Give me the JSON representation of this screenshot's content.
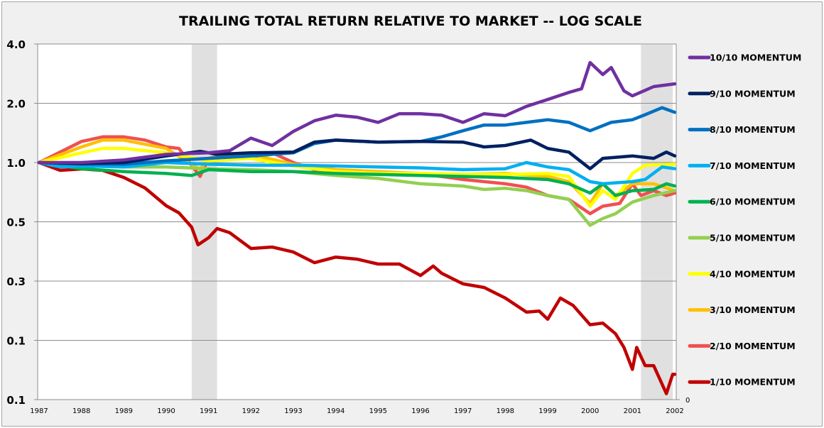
{
  "chart_data": {
    "type": "line",
    "title": "TRAILING TOTAL RETURN RELATIVE TO MARKET -- LOG SCALE",
    "y_scale": "log",
    "ylim": [
      0.0625,
      4
    ],
    "y_ticks": [
      4,
      2,
      1,
      0.5,
      0.25,
      0.125,
      0.0625
    ],
    "y_tick_labels": [
      "4.0",
      "2.0",
      "1.0",
      "0.5",
      "0.3",
      "0.1",
      "0.1"
    ],
    "secondary_y_label": "0",
    "xlim": [
      1987,
      2002
    ],
    "x_tick_labels": [
      "1987",
      "1988",
      "1989",
      "1990",
      "1991",
      "1992",
      "1993",
      "1994",
      "1995",
      "1996",
      "1997",
      "1998",
      "1999",
      "2000",
      "2001",
      "2002"
    ],
    "grid": "horizontal",
    "legend": "right",
    "shaded_periods": [
      [
        1990.6,
        1991.2
      ],
      [
        2001.2,
        2001.95
      ]
    ],
    "shade_color": "#e0e0e0",
    "series": [
      {
        "name": "10/10 MOMENTUM",
        "color": "#7030a0",
        "x": [
          1987,
          1988,
          1989,
          1990,
          1991,
          1991.5,
          1992,
          1992.5,
          1993,
          1993.5,
          1994,
          1994.5,
          1995,
          1995.5,
          1996,
          1996.5,
          1997,
          1997.5,
          1998,
          1998.5,
          1999,
          1999.5,
          1999.8,
          2000,
          2000.3,
          2000.5,
          2000.8,
          2001,
          2001.5,
          2002
        ],
        "y": [
          1.0,
          1.0,
          1.03,
          1.1,
          1.12,
          1.15,
          1.33,
          1.22,
          1.44,
          1.63,
          1.74,
          1.7,
          1.6,
          1.77,
          1.77,
          1.74,
          1.6,
          1.77,
          1.73,
          1.93,
          2.09,
          2.27,
          2.37,
          3.22,
          2.8,
          3.04,
          2.31,
          2.18,
          2.43,
          2.51
        ]
      },
      {
        "name": "9/10 MOMENTUM",
        "color": "#002060",
        "x": [
          1987,
          1988,
          1989,
          1990,
          1990.8,
          1991.2,
          1992,
          1993,
          1993.5,
          1994,
          1995,
          1996,
          1997,
          1997.5,
          1998,
          1998.6,
          1999,
          1999.5,
          2000,
          2000.3,
          2001,
          2001.5,
          2001.8,
          2002
        ],
        "y": [
          1.0,
          0.99,
          1.0,
          1.08,
          1.14,
          1.1,
          1.12,
          1.13,
          1.27,
          1.3,
          1.27,
          1.28,
          1.27,
          1.2,
          1.22,
          1.3,
          1.18,
          1.13,
          0.93,
          1.05,
          1.08,
          1.05,
          1.13,
          1.08
        ]
      },
      {
        "name": "8/10 MOMENTUM",
        "color": "#0070c0",
        "x": [
          1987,
          1988,
          1989,
          1990,
          1991,
          1992,
          1993,
          1993.5,
          1994,
          1995,
          1996,
          1996.5,
          1997,
          1997.5,
          1998,
          1998.5,
          1999,
          1999.5,
          2000,
          2000.5,
          2001,
          2001.3,
          2001.7,
          2002
        ],
        "y": [
          1.0,
          0.98,
          0.98,
          1.02,
          1.05,
          1.08,
          1.12,
          1.25,
          1.3,
          1.27,
          1.28,
          1.35,
          1.45,
          1.55,
          1.55,
          1.6,
          1.65,
          1.6,
          1.45,
          1.6,
          1.65,
          1.75,
          1.9,
          1.8
        ]
      },
      {
        "name": "7/10 MOMENTUM",
        "color": "#00b0f0",
        "x": [
          1987,
          1987.5,
          1988,
          1989,
          1990,
          1991,
          1992,
          1993,
          1994,
          1995,
          1996,
          1997,
          1998,
          1998.5,
          1999,
          1999.5,
          2000,
          2000.3,
          2001,
          2001.3,
          2001.7,
          2002
        ],
        "y": [
          1.0,
          0.95,
          0.96,
          0.95,
          1.0,
          0.98,
          0.97,
          0.97,
          0.96,
          0.95,
          0.94,
          0.92,
          0.93,
          1.0,
          0.95,
          0.92,
          0.8,
          0.78,
          0.8,
          0.82,
          0.95,
          0.93
        ]
      },
      {
        "name": "6/10 MOMENTUM",
        "color": "#00b050",
        "x": [
          1987,
          1988,
          1989,
          1990,
          1990.6,
          1991,
          1992,
          1993,
          1994,
          1995,
          1996,
          1997,
          1998,
          1999,
          1999.5,
          2000,
          2000.3,
          2000.6,
          2001,
          2001.5,
          2001.8,
          2002
        ],
        "y": [
          1.0,
          0.93,
          0.9,
          0.88,
          0.86,
          0.92,
          0.9,
          0.9,
          0.88,
          0.87,
          0.86,
          0.85,
          0.84,
          0.82,
          0.78,
          0.7,
          0.78,
          0.68,
          0.72,
          0.73,
          0.78,
          0.76
        ]
      },
      {
        "name": "5/10 MOMENTUM",
        "color": "#92d050",
        "x": [
          1987,
          1988,
          1989,
          1990,
          1991,
          1992,
          1993,
          1994,
          1995,
          1996,
          1997,
          1997.5,
          1998,
          1998.5,
          1999,
          1999.5,
          2000,
          2000.3,
          2000.6,
          2001,
          2001.5,
          2002
        ],
        "y": [
          1.0,
          0.98,
          0.95,
          0.95,
          0.93,
          0.92,
          0.9,
          0.86,
          0.83,
          0.78,
          0.76,
          0.73,
          0.74,
          0.72,
          0.68,
          0.65,
          0.48,
          0.52,
          0.55,
          0.63,
          0.68,
          0.72
        ]
      },
      {
        "name": "4/10 MOMENTUM",
        "color": "#ffff00",
        "x": [
          1987,
          1988,
          1988.5,
          1989,
          1990,
          1991,
          1992,
          1993,
          1994,
          1995,
          1996,
          1997,
          1998,
          1999,
          1999.5,
          2000,
          2000.3,
          2000.6,
          2001,
          2001.3,
          2002
        ],
        "y": [
          1.0,
          1.12,
          1.18,
          1.18,
          1.12,
          1.02,
          1.05,
          0.96,
          0.9,
          0.88,
          0.88,
          0.87,
          0.87,
          0.88,
          0.85,
          0.6,
          0.72,
          0.65,
          0.88,
          0.97,
          0.98
        ]
      },
      {
        "name": "3/10 MOMENTUM",
        "color": "#ffc000",
        "x": [
          1987,
          1988,
          1988.5,
          1989,
          1990,
          1990.8,
          1991,
          1992,
          1993,
          1994,
          1995,
          1996,
          1997,
          1998,
          1999,
          1999.5,
          2000,
          2000.3,
          2000.6,
          2001,
          2001.5,
          2002
        ],
        "y": [
          1.0,
          1.2,
          1.3,
          1.3,
          1.18,
          0.92,
          1.05,
          1.1,
          0.98,
          0.92,
          0.9,
          0.88,
          0.87,
          0.88,
          0.85,
          0.8,
          0.62,
          0.78,
          0.68,
          0.78,
          0.78,
          0.72
        ]
      },
      {
        "name": "2/10 MOMENTUM",
        "color": "#f05050",
        "x": [
          1987,
          1988,
          1988.5,
          1989,
          1989.5,
          1990,
          1990.3,
          1990.8,
          1991,
          1991.5,
          1992,
          1992.5,
          1993,
          1993.5,
          1994,
          1995,
          1996,
          1996.5,
          1997,
          1997.5,
          1998,
          1998.5,
          1999,
          1999.5,
          2000,
          2000.3,
          2000.7,
          2001,
          2001.2,
          2001.5,
          2001.8,
          2002
        ],
        "y": [
          1.0,
          1.28,
          1.35,
          1.35,
          1.3,
          1.2,
          1.18,
          0.85,
          1.05,
          1.1,
          1.05,
          1.12,
          1.0,
          0.92,
          0.9,
          0.9,
          0.87,
          0.85,
          0.82,
          0.8,
          0.78,
          0.75,
          0.68,
          0.65,
          0.55,
          0.6,
          0.62,
          0.78,
          0.68,
          0.72,
          0.68,
          0.7
        ]
      },
      {
        "name": "1/10 MOMENTUM",
        "color": "#c00000",
        "x": [
          1987,
          1987.5,
          1988,
          1988.5,
          1989,
          1989.5,
          1990,
          1990.3,
          1990.6,
          1990.75,
          1991,
          1991.2,
          1991.5,
          1992,
          1992.5,
          1993,
          1993.5,
          1994,
          1994.5,
          1995,
          1995.5,
          1996,
          1996.3,
          1996.5,
          1997,
          1997.5,
          1998,
          1998.5,
          1998.8,
          1999,
          1999.3,
          1999.6,
          2000,
          2000.3,
          2000.6,
          2000.8,
          2001,
          2001.1,
          2001.3,
          2001.5,
          2001.8,
          2001.95,
          2002
        ],
        "y": [
          1.0,
          0.913,
          0.928,
          0.913,
          0.84,
          0.742,
          0.603,
          0.555,
          0.47,
          0.382,
          0.415,
          0.462,
          0.44,
          0.366,
          0.372,
          0.351,
          0.31,
          0.331,
          0.323,
          0.305,
          0.305,
          0.267,
          0.298,
          0.274,
          0.242,
          0.232,
          0.205,
          0.174,
          0.176,
          0.16,
          0.205,
          0.188,
          0.15,
          0.153,
          0.135,
          0.115,
          0.089,
          0.115,
          0.093,
          0.093,
          0.067,
          0.084,
          0.084
        ]
      }
    ]
  }
}
